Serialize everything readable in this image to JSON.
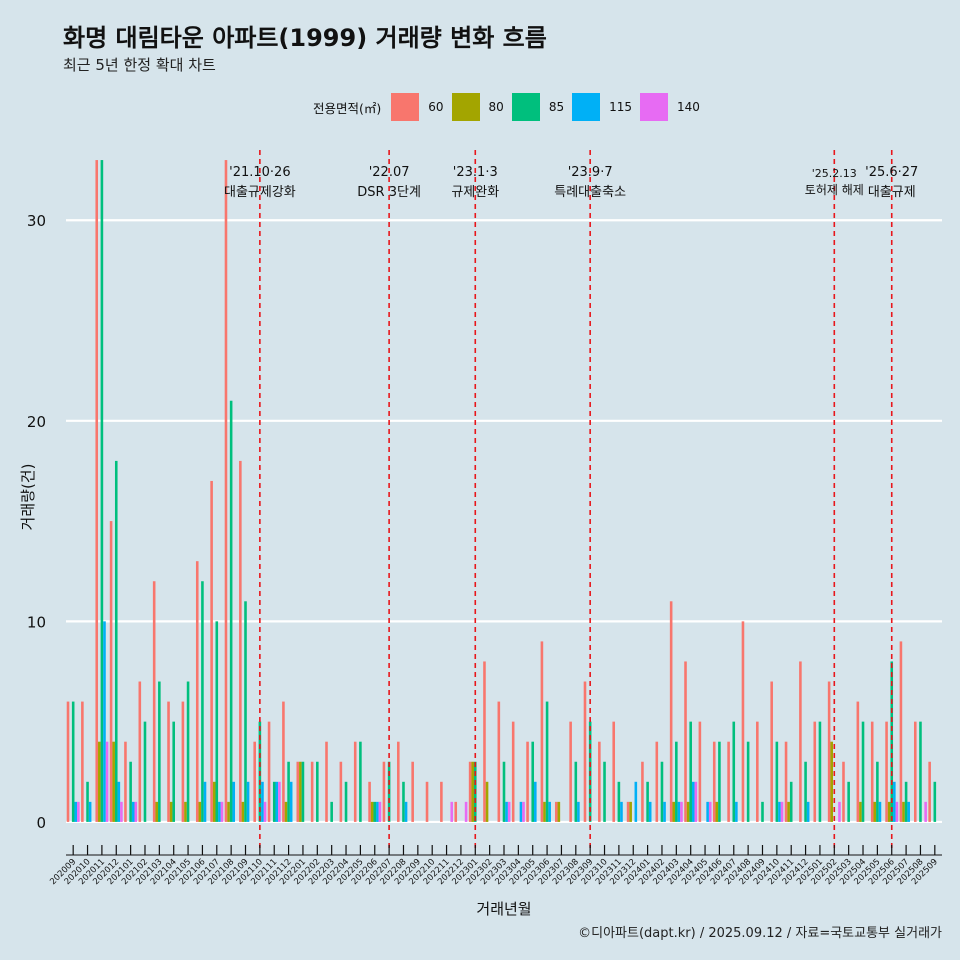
{
  "title": "화명 대림타운 아파트(1999) 거래량 변화 흐름",
  "subtitle": "최근 5년 한정 확대 차트",
  "caption": "©디아파트(dapt.kr) / 2025.09.12 / 자료=국토교통부 실거래가",
  "legend": {
    "title": "전용면적(㎡)",
    "items": [
      {
        "label": "60",
        "color": "#f8766d"
      },
      {
        "label": "80",
        "color": "#a3a500"
      },
      {
        "label": "85",
        "color": "#00bf7d"
      },
      {
        "label": "115",
        "color": "#00b0f6"
      },
      {
        "label": "140",
        "color": "#e76bf3"
      }
    ]
  },
  "chart_data": {
    "type": "bar",
    "xlabel": "거래년월",
    "ylabel": "거래량(건)",
    "ylim": [
      -1.5,
      34
    ],
    "yticks": [
      0,
      10,
      20,
      30
    ],
    "grid": true,
    "legend_position": "top",
    "categories": [
      "202009",
      "202010",
      "202011",
      "202012",
      "202101",
      "202102",
      "202103",
      "202104",
      "202105",
      "202106",
      "202107",
      "202108",
      "202109",
      "202110",
      "202111",
      "202112",
      "202201",
      "202202",
      "202203",
      "202204",
      "202205",
      "202206",
      "202207",
      "202208",
      "202209",
      "202210",
      "202211",
      "202212",
      "202301",
      "202302",
      "202303",
      "202304",
      "202305",
      "202306",
      "202307",
      "202308",
      "202309",
      "202310",
      "202311",
      "202312",
      "202401",
      "202402",
      "202403",
      "202404",
      "202405",
      "202406",
      "202407",
      "202408",
      "202409",
      "202410",
      "202411",
      "202412",
      "202501",
      "202502",
      "202503",
      "202504",
      "202505",
      "202506",
      "202507",
      "202508",
      "202509"
    ],
    "series": [
      {
        "name": "60",
        "color": "#f8766d",
        "values": [
          6,
          6,
          33,
          15,
          4,
          7,
          12,
          6,
          6,
          13,
          17,
          33,
          18,
          4,
          5,
          6,
          3,
          3,
          4,
          3,
          4,
          2,
          3,
          4,
          3,
          2,
          2,
          1,
          3,
          8,
          6,
          5,
          4,
          9,
          1,
          5,
          7,
          4,
          5,
          1,
          3,
          4,
          11,
          8,
          5,
          4,
          4,
          10,
          5,
          7,
          4,
          8,
          5,
          7,
          3,
          6,
          5,
          5,
          9,
          5,
          3
        ]
      },
      {
        "name": "80",
        "color": "#a3a500",
        "values": [
          0,
          0,
          4,
          4,
          0,
          0,
          1,
          1,
          1,
          1,
          2,
          1,
          1,
          0,
          0,
          1,
          3,
          0,
          0,
          0,
          0,
          1,
          0,
          0,
          0,
          0,
          0,
          0,
          3,
          2,
          0,
          0,
          0,
          1,
          1,
          0,
          0,
          0,
          0,
          1,
          0,
          0,
          1,
          1,
          0,
          1,
          0,
          0,
          0,
          0,
          1,
          0,
          0,
          4,
          0,
          1,
          1,
          1,
          1,
          0,
          0
        ]
      },
      {
        "name": "85",
        "color": "#00bf7d",
        "values": [
          6,
          2,
          33,
          18,
          3,
          5,
          7,
          5,
          7,
          12,
          10,
          21,
          11,
          5,
          2,
          3,
          3,
          3,
          1,
          2,
          4,
          1,
          3,
          2,
          0,
          0,
          0,
          0,
          3,
          0,
          3,
          0,
          4,
          6,
          0,
          3,
          5,
          3,
          2,
          0,
          2,
          3,
          4,
          5,
          0,
          4,
          5,
          4,
          1,
          4,
          2,
          3,
          5,
          0,
          2,
          5,
          3,
          8,
          2,
          5,
          2
        ]
      },
      {
        "name": "115",
        "color": "#00b0f6",
        "values": [
          1,
          1,
          10,
          2,
          1,
          0,
          0,
          0,
          0,
          2,
          1,
          2,
          2,
          2,
          2,
          2,
          0,
          0,
          0,
          0,
          0,
          1,
          0,
          1,
          0,
          0,
          0,
          0,
          0,
          0,
          1,
          1,
          2,
          1,
          0,
          1,
          0,
          0,
          1,
          2,
          1,
          1,
          1,
          2,
          1,
          0,
          1,
          0,
          0,
          1,
          0,
          1,
          0,
          0,
          0,
          0,
          1,
          2,
          1,
          0,
          0
        ]
      },
      {
        "name": "140",
        "color": "#e76bf3",
        "values": [
          1,
          0,
          4,
          1,
          1,
          0,
          0,
          0,
          0,
          0,
          1,
          0,
          0,
          1,
          2,
          0,
          0,
          0,
          0,
          0,
          0,
          1,
          0,
          0,
          0,
          0,
          1,
          1,
          0,
          0,
          1,
          1,
          0,
          0,
          0,
          0,
          0,
          0,
          0,
          0,
          0,
          0,
          1,
          2,
          1,
          0,
          0,
          0,
          0,
          1,
          0,
          0,
          0,
          1,
          0,
          0,
          0,
          1,
          0,
          1,
          0
        ]
      }
    ],
    "annotations": [
      {
        "x": "202110",
        "date": "'21.10·26",
        "label": "대출규제강화"
      },
      {
        "x": "202207",
        "date": "'22.07",
        "label": "DSR 3단계"
      },
      {
        "x": "202301",
        "date": "'23.1·3",
        "label": "규제완화"
      },
      {
        "x": "202309",
        "date": "'23.9·7",
        "label": "특례대출축소"
      },
      {
        "x": "202502",
        "date": "'25.2.13",
        "label": "토허제 해제"
      },
      {
        "x": "202506",
        "date": "'25.6·27",
        "label": "대출규제"
      }
    ]
  }
}
